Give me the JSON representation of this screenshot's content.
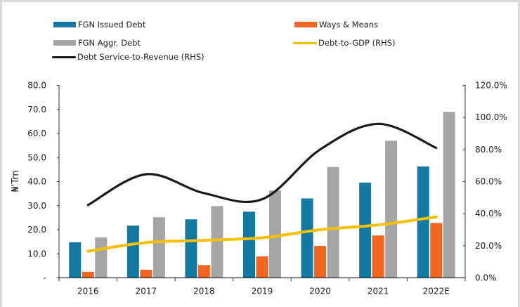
{
  "chart_data": {
    "type": "bar",
    "title": "",
    "categories": [
      "2016",
      "2017",
      "2018",
      "2019",
      "2020",
      "2021",
      "2022E"
    ],
    "ylabel": "₦'Trn",
    "ylim": [
      0,
      80
    ],
    "y_ticks": [
      "-",
      "10.0",
      "20.0",
      "30.0",
      "40.0",
      "50.0",
      "60.0",
      "70.0",
      "80.0"
    ],
    "y2lim": [
      0,
      120
    ],
    "y2_ticks": [
      "0.0%",
      "20.0%",
      "40.0%",
      "60.0%",
      "80.0%",
      "100.0%",
      "120.0%"
    ],
    "grid": false,
    "legend_position": "top",
    "series": [
      {
        "name": "FGN Issued Debt",
        "kind": "bar",
        "axis": "left",
        "color": "#1479a0",
        "values": [
          14.8,
          21.7,
          24.3,
          27.5,
          33.0,
          39.6,
          46.3
        ]
      },
      {
        "name": "Ways & Means",
        "kind": "bar",
        "axis": "left",
        "color": "#f26522",
        "values": [
          2.5,
          3.4,
          5.3,
          8.9,
          13.3,
          17.6,
          22.8
        ]
      },
      {
        "name": "FGN Aggr. Debt",
        "kind": "bar",
        "axis": "left",
        "color": "#a5a5a5",
        "values": [
          16.8,
          25.2,
          29.8,
          36.3,
          46.1,
          57.0,
          69.0
        ]
      },
      {
        "name": "Debt-to-GDP (RHS)",
        "kind": "line",
        "axis": "right",
        "color": "#f5c000",
        "values": [
          16.6,
          22.0,
          23.4,
          25.0,
          30.0,
          33.0,
          38.0
        ]
      },
      {
        "name": "Debt Service-to-Revenue (RHS)",
        "kind": "line",
        "axis": "right",
        "color": "#1a1a1a",
        "values": [
          45.4,
          64.6,
          52.8,
          49.0,
          80.0,
          96.0,
          81.0
        ]
      }
    ]
  },
  "legend": [
    {
      "label": "FGN Issued Debt",
      "type": "bar",
      "color": "#1479a0"
    },
    {
      "label": "Ways & Means",
      "type": "bar",
      "color": "#f26522"
    },
    {
      "label": "FGN Aggr. Debt",
      "type": "bar",
      "color": "#a5a5a5"
    },
    {
      "label": "Debt-to-GDP (RHS)",
      "type": "line",
      "color": "#f5c000"
    },
    {
      "label": "Debt Service-to-Revenue (RHS)",
      "type": "line",
      "color": "#1a1a1a"
    }
  ]
}
